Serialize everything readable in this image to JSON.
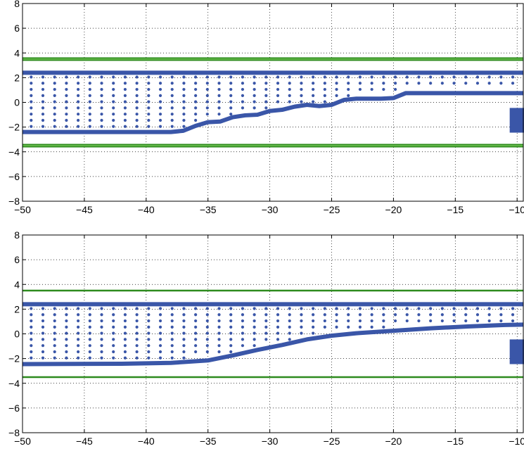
{
  "chart_data": [
    {
      "type": "line",
      "title": "",
      "xlabel": "",
      "ylabel": "",
      "xlim": [
        -50,
        -9.5
      ],
      "ylim": [
        -8,
        8
      ],
      "xticks": [
        -50,
        -45,
        -40,
        -35,
        -30,
        -25,
        -20,
        -15,
        -10
      ],
      "yticks": [
        -8,
        -6,
        -4,
        -2,
        0,
        2,
        4,
        6,
        8
      ],
      "xtick_labels": [
        "−50",
        "−45",
        "−40",
        "−35",
        "−30",
        "−25",
        "−20",
        "−15",
        "−10"
      ],
      "ytick_labels": [
        "−8",
        "−6",
        "−4",
        "−2",
        "0",
        "2",
        "4",
        "6",
        "8"
      ],
      "grid": true,
      "colors": {
        "series": "#3a56a8",
        "limit": "#2e8b1e"
      },
      "series": [
        {
          "role": "upper-boundary",
          "x": [
            -50,
            -9.5
          ],
          "y": [
            2.4,
            2.4
          ]
        },
        {
          "role": "lower-path",
          "x": [
            -50,
            -38,
            -37,
            -36,
            -35,
            -34,
            -33,
            -32,
            -31,
            -30,
            -29,
            -28,
            -27,
            -26,
            -25,
            -24,
            -23,
            -21,
            -20,
            -19,
            -9.5
          ],
          "y": [
            -2.4,
            -2.4,
            -2.3,
            -1.9,
            -1.6,
            -1.55,
            -1.2,
            -1.05,
            -1.0,
            -0.7,
            -0.6,
            -0.35,
            -0.2,
            -0.3,
            -0.2,
            0.2,
            0.3,
            0.3,
            0.35,
            0.75,
            0.75
          ]
        }
      ],
      "limits_y": [
        3.5,
        -3.5
      ],
      "marker_block": {
        "x": [
          -10.6,
          -8.9
        ],
        "y": [
          -2.45,
          -0.45
        ]
      }
    },
    {
      "type": "line",
      "title": "",
      "xlabel": "",
      "ylabel": "",
      "xlim": [
        -50,
        -9.5
      ],
      "ylim": [
        -8,
        8
      ],
      "xticks": [
        -50,
        -45,
        -40,
        -35,
        -30,
        -25,
        -20,
        -15,
        -10
      ],
      "yticks": [
        -8,
        -6,
        -4,
        -2,
        0,
        2,
        4,
        6,
        8
      ],
      "xtick_labels": [
        "−50",
        "−45",
        "−40",
        "−35",
        "−30",
        "−25",
        "−20",
        "−15",
        "−10"
      ],
      "ytick_labels": [
        "−8",
        "−6",
        "−4",
        "−2",
        "0",
        "2",
        "4",
        "6",
        "8"
      ],
      "grid": true,
      "colors": {
        "series": "#3a56a8",
        "limit": "#2e8b1e"
      },
      "series": [
        {
          "role": "upper-boundary",
          "x": [
            -50,
            -9.5
          ],
          "y": [
            2.4,
            2.4
          ]
        },
        {
          "role": "lower-path",
          "x": [
            -50,
            -42,
            -38,
            -35,
            -33,
            -31,
            -29,
            -27,
            -25,
            -23,
            -20,
            -17,
            -14,
            -11,
            -9.5
          ],
          "y": [
            -2.45,
            -2.42,
            -2.35,
            -2.15,
            -1.75,
            -1.3,
            -0.9,
            -0.45,
            -0.15,
            0.05,
            0.25,
            0.45,
            0.6,
            0.72,
            0.75
          ]
        }
      ],
      "limits_y": [
        3.5,
        -3.5
      ],
      "marker_block": {
        "x": [
          -10.6,
          -8.9
        ],
        "y": [
          -2.45,
          -0.45
        ]
      }
    }
  ]
}
